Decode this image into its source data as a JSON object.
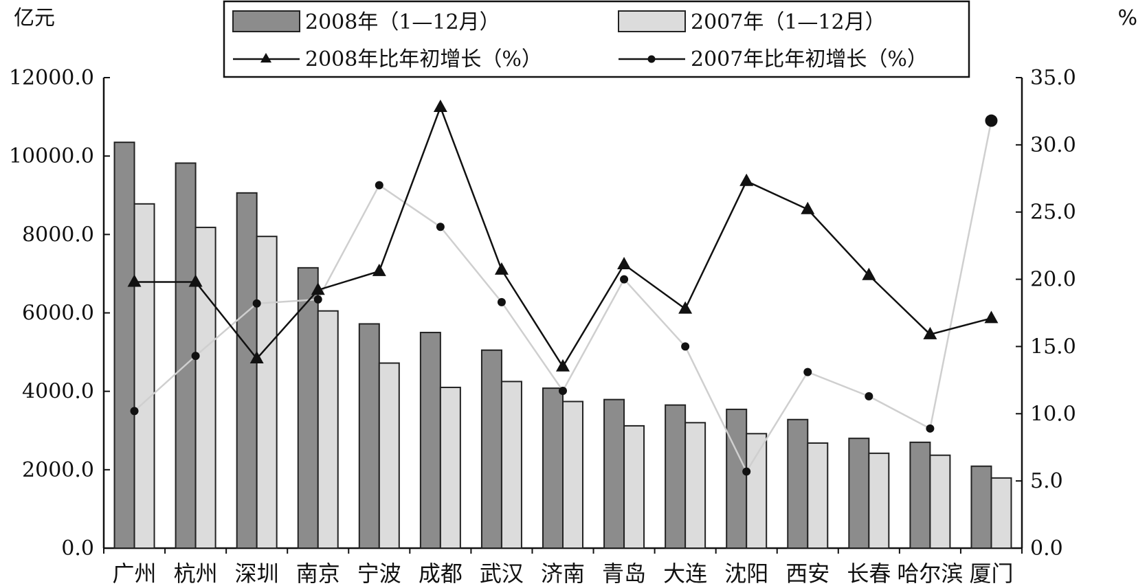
{
  "chart_data": {
    "type": "bar",
    "categories": [
      "广州",
      "杭州",
      "深圳",
      "南京",
      "宁波",
      "成都",
      "武汉",
      "济南",
      "青岛",
      "大连",
      "沈阳",
      "西安",
      "长春",
      "哈尔滨",
      "厦门"
    ],
    "series": [
      {
        "name": "2008年（1—12月）",
        "kind": "bar",
        "axis": "left",
        "color": "#8c8c8c",
        "values": [
          10350,
          9820,
          9060,
          7150,
          5720,
          5500,
          5050,
          4080,
          3790,
          3650,
          3540,
          3280,
          2800,
          2700,
          2090
        ]
      },
      {
        "name": "2007年（1—12月）",
        "kind": "bar",
        "axis": "left",
        "color": "#dcdcdc",
        "values": [
          8780,
          8180,
          7950,
          6050,
          4720,
          4100,
          4250,
          3740,
          3120,
          3200,
          2920,
          2680,
          2420,
          2370,
          1790
        ]
      },
      {
        "name": "2008年比年初增长（%）",
        "kind": "line",
        "axis": "right",
        "marker": "triangle",
        "color": "#111111",
        "values": [
          19.8,
          19.8,
          14.1,
          19.2,
          20.6,
          32.8,
          20.7,
          13.5,
          21.1,
          17.8,
          27.3,
          25.2,
          20.3,
          15.9,
          17.1
        ]
      },
      {
        "name": "2007年比年初增长（%）",
        "kind": "line",
        "axis": "right",
        "marker": "circle",
        "color": "#cfcfcf",
        "values": [
          10.2,
          14.3,
          18.2,
          18.5,
          27.0,
          23.9,
          18.3,
          11.7,
          20.0,
          15.0,
          5.7,
          13.1,
          11.3,
          8.9,
          31.8
        ]
      }
    ],
    "ylabel_left": "亿元",
    "ylabel_right": "%",
    "ylim_left": [
      0,
      12000
    ],
    "ylim_right": [
      0,
      35
    ],
    "yticks_left": [
      "0.0",
      "2000.0",
      "4000.0",
      "6000.0",
      "8000.0",
      "10000.0",
      "12000.0"
    ],
    "yticks_right": [
      "0.0",
      "5.0",
      "10.0",
      "15.0",
      "20.0",
      "25.0",
      "30.0",
      "35.0"
    ],
    "legend_position": "top-center",
    "grid": false
  }
}
